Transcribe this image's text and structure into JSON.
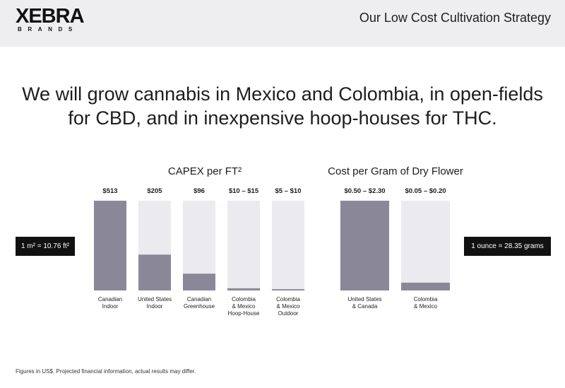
{
  "header": {
    "logo_word": "XEBRA",
    "logo_sub": "BRANDS",
    "title": "Our Low Cost Cultivation Strategy"
  },
  "headline": {
    "line1": "We will grow cannabis in Mexico and Colombia, in open-fields",
    "line2": "for CBD, and in inexpensive hoop-houses for THC."
  },
  "conversions": {
    "area": "1 m² = 10.76 ft²",
    "weight": "1 ounce = 28.35 grams"
  },
  "footnote": "Figures in US$. Projected financial information, actual results may differ.",
  "colors": {
    "bar_fill": "#8a8898",
    "bar_track": "#ebebef",
    "header_bg": "#eeeef0"
  },
  "chart_data": [
    {
      "type": "bar",
      "title": "CAPEX per FT²",
      "categories": [
        [
          "Canadian",
          "Indoor"
        ],
        [
          "United States",
          "Indoor"
        ],
        [
          "Canadian",
          "Greenhouse"
        ],
        [
          "Colombia",
          "& Mexico",
          "Hoop-House"
        ],
        [
          "Colombia",
          "& Mexico",
          "Outdoor"
        ]
      ],
      "values": [
        513,
        205,
        96,
        12.5,
        7.5
      ],
      "value_labels": [
        "$513",
        "$205",
        "$96",
        "$10 – $15",
        "$5 – $10"
      ],
      "ylim": [
        0,
        513
      ],
      "grid": false
    },
    {
      "type": "bar",
      "title": "Cost per Gram of Dry Flower",
      "categories": [
        [
          "United States",
          "& Canada"
        ],
        [
          "Colombia",
          "& Mexico"
        ]
      ],
      "values": [
        2.3,
        0.2
      ],
      "value_labels": [
        "$0.50 – $2.30",
        "$0.05 – $0.20"
      ],
      "ylim": [
        0,
        2.3
      ],
      "grid": false
    }
  ]
}
